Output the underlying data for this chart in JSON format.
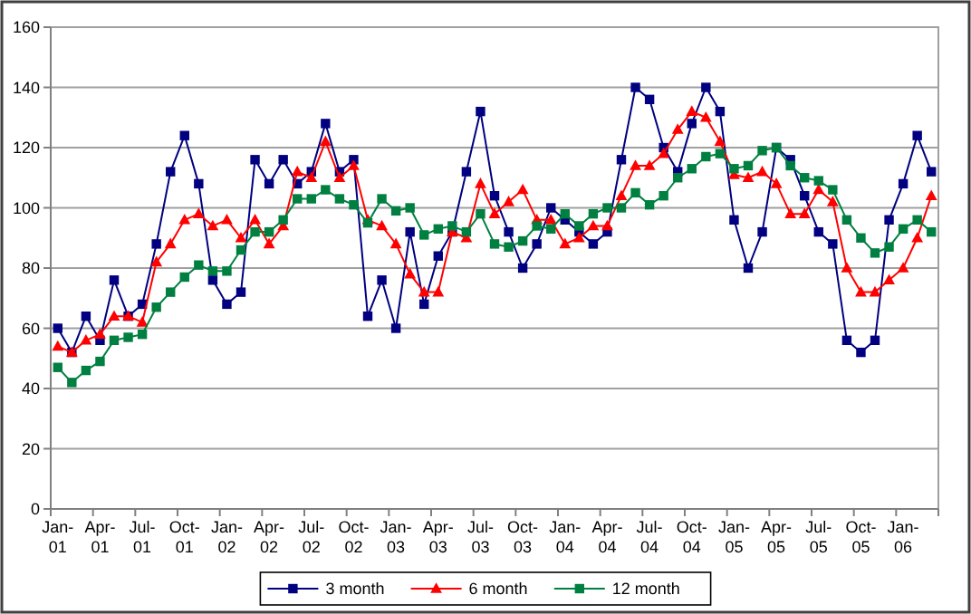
{
  "chart_data": {
    "type": "line",
    "categories": [
      "Jan-01",
      null,
      null,
      "Apr-01",
      null,
      null,
      "Jul-01",
      null,
      null,
      "Oct-01",
      null,
      null,
      "Jan-02",
      null,
      null,
      "Apr-02",
      null,
      null,
      "Jul-02",
      null,
      null,
      "Oct-02",
      null,
      null,
      "Jan-03",
      null,
      null,
      "Apr-03",
      null,
      null,
      "Jul-03",
      null,
      null,
      "Oct-03",
      null,
      null,
      "Jan-04",
      null,
      null,
      "Apr-04",
      null,
      null,
      "Jul-04",
      null,
      null,
      "Oct-04",
      null,
      null,
      "Jan-05",
      null,
      null,
      "Apr-05",
      null,
      null,
      "Jul-05",
      null,
      null,
      "Oct-05",
      null,
      null,
      "Jan-06",
      null,
      null
    ],
    "series": [
      {
        "name": "3 month",
        "color": "#000080",
        "marker": "square",
        "values": [
          60,
          52,
          64,
          56,
          76,
          64,
          68,
          88,
          112,
          124,
          108,
          76,
          68,
          72,
          116,
          108,
          116,
          108,
          112,
          128,
          112,
          116,
          64,
          76,
          60,
          92,
          68,
          84,
          92,
          112,
          132,
          104,
          92,
          80,
          88,
          100,
          96,
          92,
          88,
          92,
          116,
          140,
          136,
          120,
          112,
          128,
          140,
          132,
          96,
          80,
          92,
          120,
          116,
          104,
          92,
          88,
          56,
          52,
          56,
          96,
          108,
          124,
          112
        ]
      },
      {
        "name": "6 month",
        "color": "#ff0000",
        "marker": "triangle",
        "values": [
          54,
          52,
          56,
          58,
          64,
          64,
          62,
          82,
          88,
          96,
          98,
          94,
          96,
          90,
          96,
          88,
          94,
          112,
          110,
          122,
          110,
          114,
          96,
          94,
          88,
          78,
          72,
          72,
          92,
          90,
          108,
          98,
          102,
          106,
          96,
          96,
          88,
          90,
          94,
          94,
          104,
          114,
          114,
          118,
          126,
          132,
          130,
          122,
          111,
          110,
          112,
          108,
          98,
          98,
          106,
          102,
          80,
          72,
          72,
          76,
          80,
          90,
          104
        ]
      },
      {
        "name": "12 month",
        "color": "#008040",
        "marker": "square",
        "values": [
          47,
          42,
          46,
          49,
          56,
          57,
          58,
          67,
          72,
          77,
          81,
          79,
          79,
          86,
          92,
          92,
          96,
          103,
          103,
          106,
          103,
          101,
          95,
          103,
          99,
          100,
          91,
          93,
          94,
          92,
          98,
          88,
          87,
          89,
          94,
          93,
          98,
          94,
          98,
          100,
          100,
          105,
          101,
          104,
          110,
          113,
          117,
          118,
          113,
          114,
          119,
          120,
          114,
          110,
          109,
          106,
          96,
          90,
          85,
          87,
          93,
          96,
          92
        ]
      }
    ],
    "ylim": [
      0,
      160
    ],
    "yticks": [
      0,
      20,
      40,
      60,
      80,
      100,
      120,
      140,
      160
    ],
    "grid": "y",
    "legend": "bottom",
    "line_style": "solid"
  }
}
